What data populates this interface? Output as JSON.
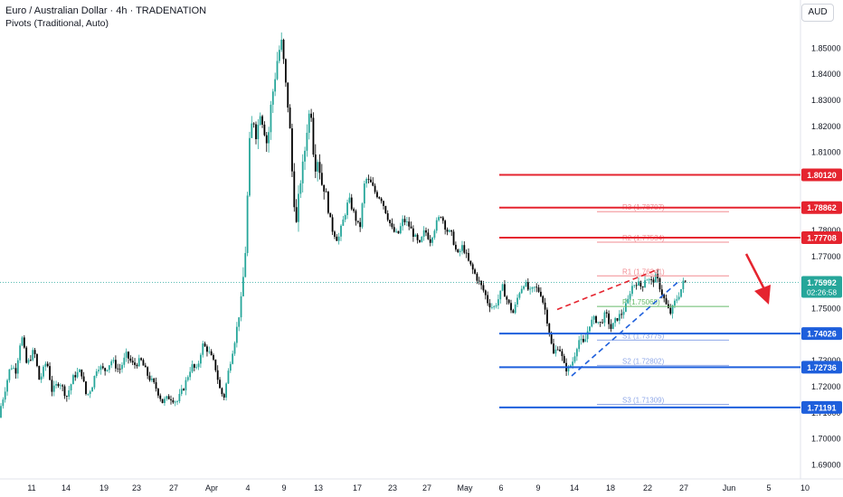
{
  "header": {
    "title": "Euro / Australian Dollar · 4h · TRADENATION",
    "indicator": "Pivots (Traditional, Auto)",
    "currency": "AUD"
  },
  "chart_data": {
    "type": "candlestick",
    "ylim": [
      1.685,
      1.865
    ],
    "y_ticks": [
      "1.85000",
      "1.84000",
      "1.83000",
      "1.82000",
      "1.81000",
      "1.80000",
      "1.79000",
      "1.78000",
      "1.77000",
      "1.76000",
      "1.75000",
      "1.74000",
      "1.73000",
      "1.72000",
      "1.71000",
      "1.70000",
      "1.69000"
    ],
    "x_ticks": [
      "11",
      "14",
      "19",
      "23",
      "27",
      "Apr",
      "4",
      "9",
      "13",
      "17",
      "23",
      "27",
      "May",
      "6",
      "9",
      "14",
      "18",
      "22",
      "27",
      "Jun",
      "5",
      "10"
    ],
    "current_price": {
      "value": "1.75992",
      "countdown": "02:26:58",
      "numeric": 1.75992
    },
    "levels": [
      {
        "label": "1.80120",
        "value": 1.8012,
        "color": "#e5242f"
      },
      {
        "label": "1.78862",
        "value": 1.78862,
        "color": "#e5242f"
      },
      {
        "label": "1.77708",
        "value": 1.77708,
        "color": "#e5242f"
      },
      {
        "label": "1.74026",
        "value": 1.74026,
        "color": "#1e5fdc"
      },
      {
        "label": "1.72736",
        "value": 1.72736,
        "color": "#1e5fdc"
      },
      {
        "label": "1.71191",
        "value": 1.71191,
        "color": "#1e5fdc"
      }
    ],
    "pivots": [
      {
        "label": "R3 (1.78707)",
        "value": 1.78707,
        "color": "#f28b91"
      },
      {
        "label": "R2 (1.77534)",
        "value": 1.77534,
        "color": "#f28b91"
      },
      {
        "label": "R1 (1.76241)",
        "value": 1.76241,
        "color": "#f28b91"
      },
      {
        "label": "P (1.75068)",
        "value": 1.75068,
        "color": "#66bb6a"
      },
      {
        "label": "S1 (1.73775)",
        "value": 1.73775,
        "color": "#8fa8e8"
      },
      {
        "label": "S2 (1.72802)",
        "value": 1.72802,
        "color": "#8fa8e8"
      },
      {
        "label": "S3 (1.71309)",
        "value": 1.71309,
        "color": "#8fa8e8"
      }
    ],
    "anchors": [
      [
        0,
        1.708
      ],
      [
        6,
        1.716
      ],
      [
        14,
        1.728
      ],
      [
        20,
        1.726
      ],
      [
        26,
        1.74
      ],
      [
        32,
        1.728
      ],
      [
        40,
        1.734
      ],
      [
        46,
        1.722
      ],
      [
        54,
        1.73
      ],
      [
        60,
        1.718
      ],
      [
        68,
        1.722
      ],
      [
        76,
        1.716
      ],
      [
        84,
        1.724
      ],
      [
        92,
        1.726
      ],
      [
        98,
        1.716
      ],
      [
        104,
        1.72
      ],
      [
        110,
        1.728
      ],
      [
        118,
        1.726
      ],
      [
        126,
        1.73
      ],
      [
        134,
        1.726
      ],
      [
        142,
        1.732
      ],
      [
        150,
        1.728
      ],
      [
        158,
        1.73
      ],
      [
        166,
        1.724
      ],
      [
        174,
        1.72
      ],
      [
        182,
        1.714
      ],
      [
        190,
        1.716
      ],
      [
        198,
        1.714
      ],
      [
        206,
        1.72
      ],
      [
        214,
        1.728
      ],
      [
        220,
        1.726
      ],
      [
        226,
        1.736
      ],
      [
        232,
        1.734
      ],
      [
        240,
        1.728
      ],
      [
        246,
        1.718
      ],
      [
        250,
        1.716
      ],
      [
        256,
        1.728
      ],
      [
        262,
        1.738
      ],
      [
        266,
        1.746
      ],
      [
        270,
        1.756
      ],
      [
        274,
        1.774
      ],
      [
        278,
        1.812
      ],
      [
        282,
        1.824
      ],
      [
        286,
        1.816
      ],
      [
        290,
        1.826
      ],
      [
        294,
        1.82
      ],
      [
        298,
        1.812
      ],
      [
        302,
        1.828
      ],
      [
        306,
        1.838
      ],
      [
        310,
        1.848
      ],
      [
        314,
        1.852
      ],
      [
        318,
        1.836
      ],
      [
        322,
        1.824
      ],
      [
        326,
        1.798
      ],
      [
        330,
        1.782
      ],
      [
        334,
        1.798
      ],
      [
        338,
        1.806
      ],
      [
        342,
        1.82
      ],
      [
        346,
        1.828
      ],
      [
        350,
        1.804
      ],
      [
        354,
        1.808
      ],
      [
        358,
        1.798
      ],
      [
        362,
        1.796
      ],
      [
        366,
        1.786
      ],
      [
        370,
        1.78
      ],
      [
        376,
        1.776
      ],
      [
        382,
        1.784
      ],
      [
        388,
        1.792
      ],
      [
        394,
        1.786
      ],
      [
        400,
        1.78
      ],
      [
        406,
        1.8
      ],
      [
        412,
        1.798
      ],
      [
        418,
        1.794
      ],
      [
        424,
        1.792
      ],
      [
        430,
        1.786
      ],
      [
        436,
        1.78
      ],
      [
        442,
        1.778
      ],
      [
        448,
        1.784
      ],
      [
        454,
        1.782
      ],
      [
        460,
        1.778
      ],
      [
        466,
        1.774
      ],
      [
        472,
        1.78
      ],
      [
        478,
        1.776
      ],
      [
        484,
        1.782
      ],
      [
        490,
        1.786
      ],
      [
        496,
        1.78
      ],
      [
        502,
        1.778
      ],
      [
        508,
        1.77
      ],
      [
        514,
        1.774
      ],
      [
        520,
        1.768
      ],
      [
        526,
        1.764
      ],
      [
        532,
        1.76
      ],
      [
        538,
        1.756
      ],
      [
        542,
        1.752
      ],
      [
        548,
        1.75
      ],
      [
        554,
        1.754
      ],
      [
        558,
        1.758
      ],
      [
        564,
        1.752
      ],
      [
        570,
        1.748
      ],
      [
        576,
        1.756
      ],
      [
        582,
        1.76
      ],
      [
        588,
        1.756
      ],
      [
        594,
        1.758
      ],
      [
        600,
        1.756
      ],
      [
        606,
        1.748
      ],
      [
        610,
        1.74
      ],
      [
        614,
        1.732
      ],
      [
        620,
        1.736
      ],
      [
        626,
        1.728
      ],
      [
        630,
        1.726
      ],
      [
        636,
        1.73
      ],
      [
        642,
        1.738
      ],
      [
        648,
        1.736
      ],
      [
        654,
        1.744
      ],
      [
        660,
        1.746
      ],
      [
        666,
        1.744
      ],
      [
        672,
        1.748
      ],
      [
        678,
        1.742
      ],
      [
        684,
        1.746
      ],
      [
        690,
        1.748
      ],
      [
        696,
        1.752
      ],
      [
        700,
        1.758
      ],
      [
        706,
        1.76
      ],
      [
        712,
        1.758
      ],
      [
        716,
        1.762
      ],
      [
        722,
        1.76
      ],
      [
        728,
        1.762
      ],
      [
        734,
        1.756
      ],
      [
        740,
        1.75
      ],
      [
        744,
        1.748
      ],
      [
        748,
        1.752
      ],
      [
        754,
        1.756
      ],
      [
        758,
        1.76
      ]
    ]
  }
}
